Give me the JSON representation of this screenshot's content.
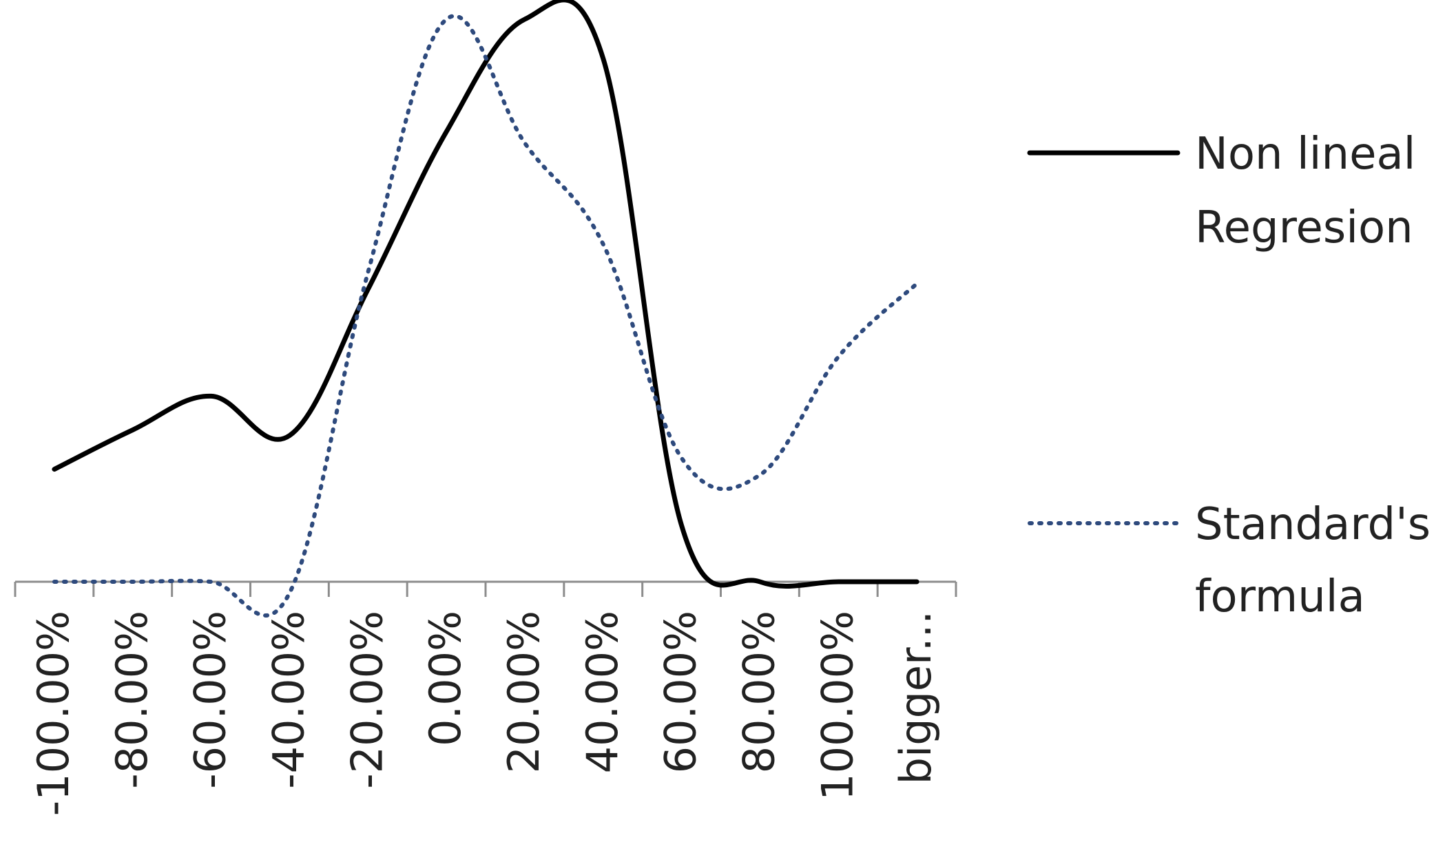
{
  "chart_data": {
    "type": "line",
    "title": "",
    "xlabel": "",
    "ylabel": "",
    "categories": [
      "-100.00%",
      "-80.00%",
      "-60.00%",
      "-40.00%",
      "-20.00%",
      "0.00%",
      "20.00%",
      "40.00%",
      "60.00%",
      "80.00%",
      "100.00%",
      "bigger..."
    ],
    "series": [
      {
        "name": "Non lineal Regresion",
        "style": "solid",
        "color": "#000000",
        "values": [
          0.2,
          0.27,
          0.33,
          0.26,
          0.52,
          0.8,
          1.0,
          0.93,
          0.1,
          0.0,
          0.0,
          0.0
        ]
      },
      {
        "name": "Standard's formula",
        "style": "dotted",
        "color": "#2e4a7d",
        "values": [
          0.0,
          0.0,
          0.0,
          -0.02,
          0.55,
          1.0,
          0.78,
          0.6,
          0.22,
          0.19,
          0.4,
          0.53
        ]
      }
    ],
    "ylim": [
      -0.05,
      1.05
    ],
    "grid": false,
    "y_axis_visible": false,
    "legend_position": "right"
  }
}
